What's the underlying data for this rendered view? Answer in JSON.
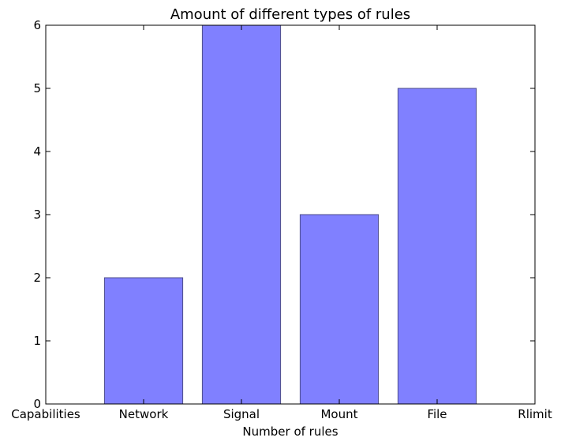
{
  "chart_data": {
    "type": "bar",
    "title": "Amount of different types of rules",
    "xlabel": "Number of rules",
    "ylabel": "",
    "categories": [
      "Capabilities",
      "Network",
      "Signal",
      "Mount",
      "File",
      "Rlimit"
    ],
    "values": [
      0,
      2,
      6,
      3,
      5,
      0
    ],
    "ylim": [
      0,
      6
    ],
    "yticks": [
      0,
      1,
      2,
      3,
      4,
      5,
      6
    ],
    "grid": false,
    "legend": "none",
    "colors": {
      "bar_fill": "#8080ff",
      "bar_edge": "#4d4d8a"
    }
  }
}
